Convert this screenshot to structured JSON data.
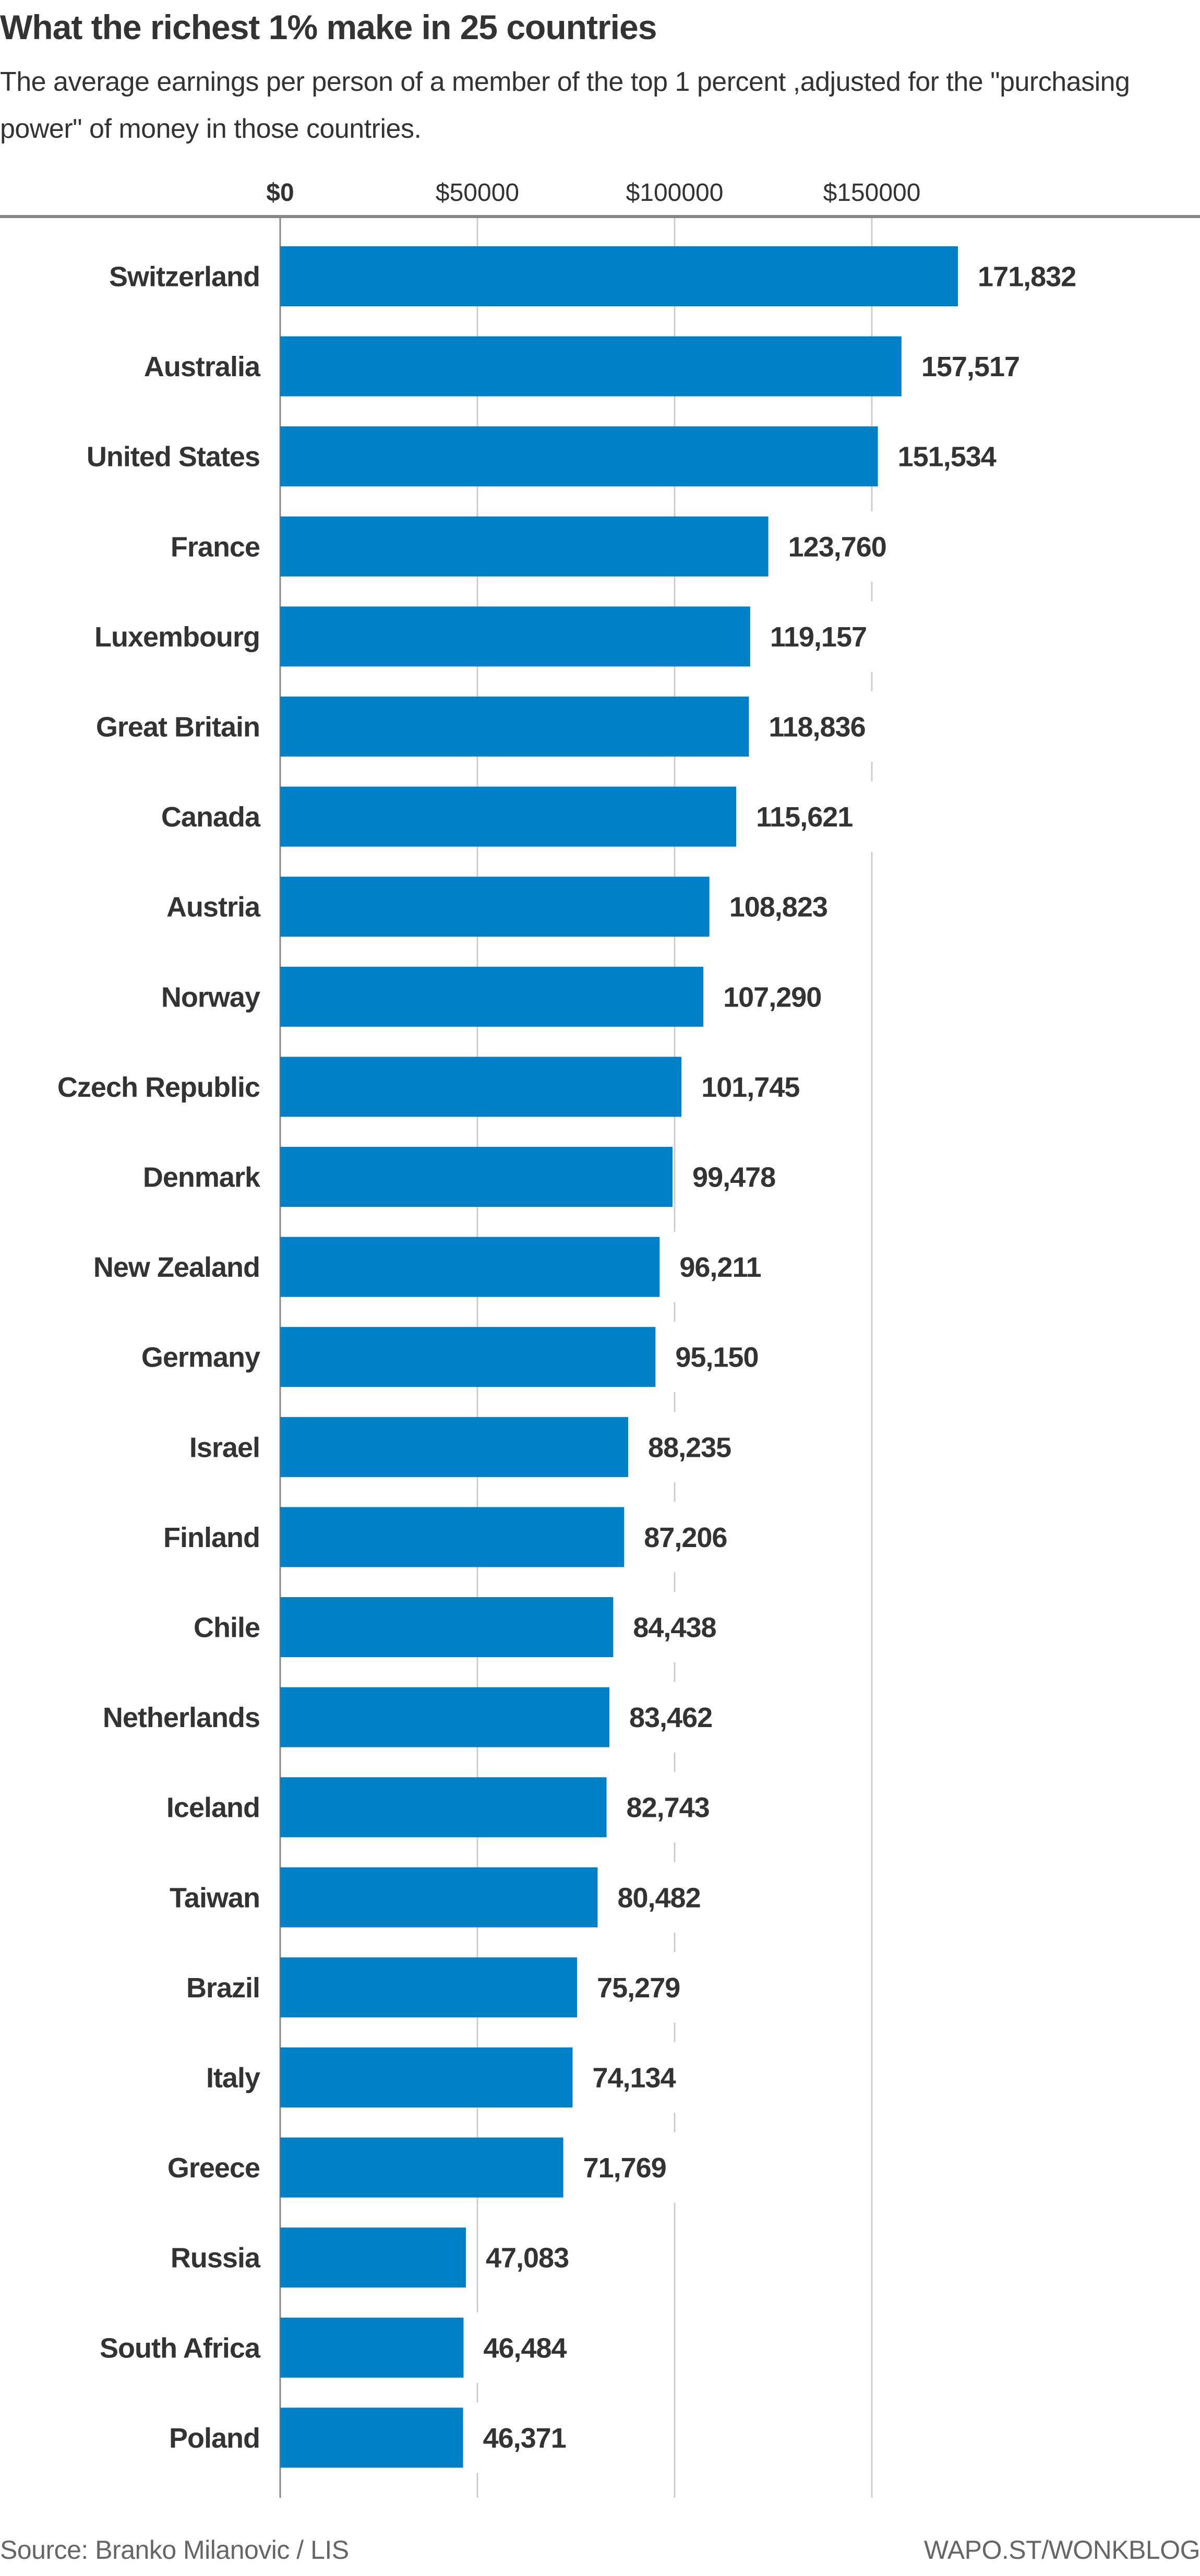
{
  "chart_data": {
    "type": "bar",
    "orientation": "horizontal",
    "title": "What the richest 1% make in 25 countries",
    "subtitle": "The average earnings per person of a member of the top 1 percent ,adjusted for the \"purchasing power\" of money in those countries.",
    "xlabel": "",
    "ylabel": "",
    "xlim": [
      0,
      180000
    ],
    "x_ticks": [
      0,
      50000,
      100000,
      150000
    ],
    "x_tick_labels": [
      "$0",
      "$50000",
      "$100000",
      "$150000"
    ],
    "axis_position": "top",
    "grid": true,
    "bar_color": "#0080C6",
    "categories": [
      "Switzerland",
      "Australia",
      "United States",
      "France",
      "Luxembourg",
      "Great Britain",
      "Canada",
      "Austria",
      "Norway",
      "Czech Republic",
      "Denmark",
      "New Zealand",
      "Germany",
      "Israel",
      "Finland",
      "Chile",
      "Netherlands",
      "Iceland",
      "Taiwan",
      "Brazil",
      "Italy",
      "Greece",
      "Russia",
      "South Africa",
      "Poland"
    ],
    "values": [
      171832,
      157517,
      151534,
      123760,
      119157,
      118836,
      115621,
      108823,
      107290,
      101745,
      99478,
      96211,
      95150,
      88235,
      87206,
      84438,
      83462,
      82743,
      80482,
      75279,
      74134,
      71769,
      47083,
      46484,
      46371
    ],
    "data_labels": [
      "171,832",
      "157,517",
      "151,534",
      "123,760",
      "119,157",
      "118,836",
      "115,621",
      "108,823",
      "107,290",
      "101,745",
      "99,478",
      "96,211",
      "95,150",
      "88,235",
      "87,206",
      "84,438",
      "83,462",
      "82,743",
      "80,482",
      "75,279",
      "74,134",
      "71,769",
      "47,083",
      "46,484",
      "46,371"
    ]
  },
  "footer": {
    "source": "Source: Branko Milanovic / LIS",
    "credit": "WAPO.ST/WONKBLOG"
  }
}
